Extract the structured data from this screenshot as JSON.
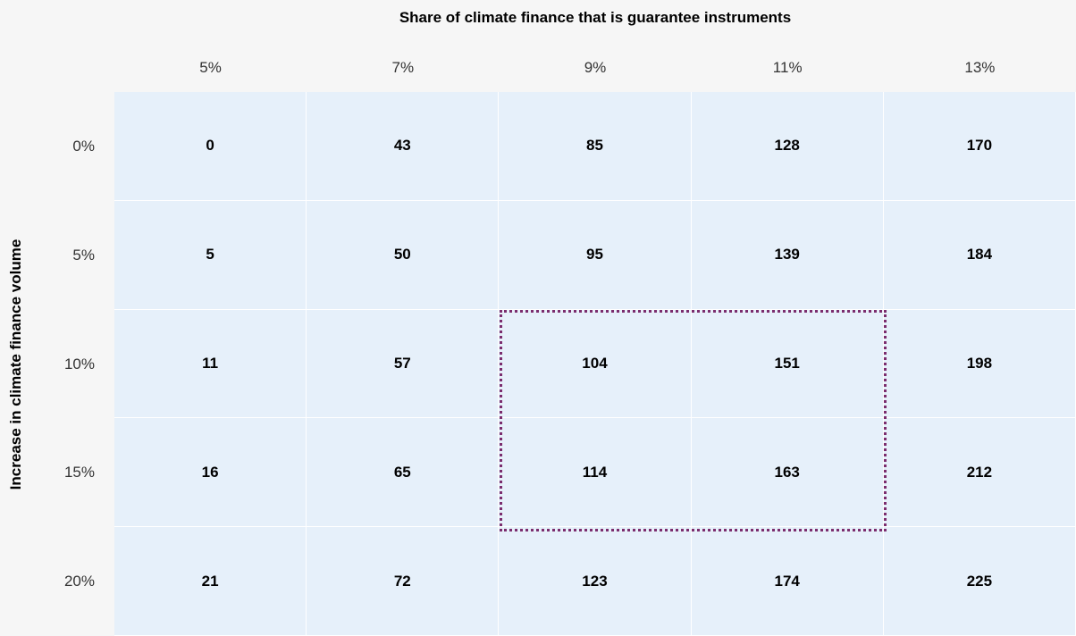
{
  "table": {
    "column_title": "Share of climate finance that is guarantee instruments",
    "row_title": "Increase in climate finance volume",
    "columns": [
      "5%",
      "7%",
      "9%",
      "11%",
      "13%"
    ],
    "rows": [
      {
        "label": "0%",
        "cells": [
          0,
          43,
          85,
          128,
          170
        ]
      },
      {
        "label": "5%",
        "cells": [
          5,
          50,
          95,
          139,
          184
        ]
      },
      {
        "label": "10%",
        "cells": [
          11,
          57,
          104,
          151,
          198
        ]
      },
      {
        "label": "15%",
        "cells": [
          16,
          65,
          114,
          163,
          212
        ]
      },
      {
        "label": "20%",
        "cells": [
          21,
          72,
          123,
          174,
          225
        ]
      }
    ]
  }
}
